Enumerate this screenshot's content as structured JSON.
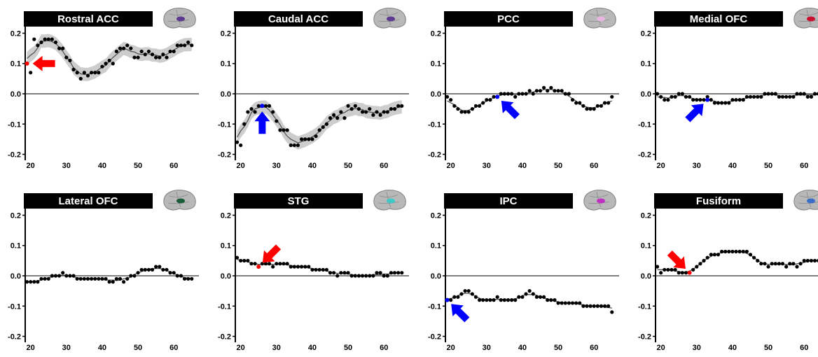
{
  "chart_data": [
    {
      "type": "scatter",
      "title": "Rostral ACC",
      "xticks": [
        20,
        30,
        40,
        50,
        60
      ],
      "yticks": [
        0.2,
        0.1,
        0.0,
        -0.1,
        -0.2
      ],
      "xlim": [
        18.5,
        67
      ],
      "ylim": [
        -0.215,
        0.215
      ],
      "brain_color": "#5b3a8f",
      "smooth_band": true,
      "highlight": {
        "x": 19,
        "y": 0.1,
        "color": "#ff0000"
      },
      "arrow": {
        "color": "#ff0000",
        "direction": "left"
      },
      "x": [
        19,
        20,
        21,
        22,
        23,
        24,
        25,
        26,
        27,
        28,
        29,
        30,
        31,
        32,
        33,
        34,
        35,
        36,
        37,
        38,
        39,
        40,
        41,
        42,
        43,
        44,
        45,
        46,
        47,
        48,
        49,
        50,
        51,
        52,
        53,
        54,
        55,
        56,
        57,
        58,
        59,
        60,
        61,
        62,
        63,
        64,
        65
      ],
      "y": [
        0.1,
        0.07,
        0.18,
        0.16,
        0.17,
        0.18,
        0.18,
        0.18,
        0.17,
        0.15,
        0.15,
        0.12,
        0.11,
        0.08,
        0.07,
        0.05,
        0.07,
        0.06,
        0.07,
        0.07,
        0.07,
        0.09,
        0.1,
        0.11,
        0.1,
        0.14,
        0.15,
        0.15,
        0.16,
        0.15,
        0.12,
        0.12,
        0.14,
        0.13,
        0.14,
        0.13,
        0.12,
        0.12,
        0.13,
        0.12,
        0.14,
        0.14,
        0.16,
        0.16,
        0.16,
        0.17,
        0.16
      ]
    },
    {
      "type": "scatter",
      "title": "Caudal ACC",
      "xticks": [
        20,
        30,
        40,
        50,
        60
      ],
      "yticks": [
        0.2,
        0.1,
        0.0,
        -0.1,
        -0.2
      ],
      "xlim": [
        18.5,
        67
      ],
      "ylim": [
        -0.215,
        0.215
      ],
      "brain_color": "#5b3a8f",
      "smooth_band": true,
      "highlight": {
        "x": 26,
        "y": -0.04,
        "color": "#0000ff"
      },
      "arrow": {
        "color": "#0000ff",
        "direction": "up"
      },
      "x": [
        19,
        20,
        21,
        22,
        23,
        24,
        25,
        26,
        27,
        28,
        29,
        30,
        31,
        32,
        33,
        34,
        35,
        36,
        37,
        38,
        39,
        40,
        41,
        42,
        43,
        44,
        45,
        46,
        47,
        48,
        49,
        50,
        51,
        52,
        53,
        54,
        55,
        56,
        57,
        58,
        59,
        60,
        61,
        62,
        63,
        64,
        65
      ],
      "y": [
        -0.16,
        -0.17,
        -0.1,
        -0.06,
        -0.05,
        -0.06,
        -0.04,
        -0.04,
        -0.04,
        -0.04,
        -0.06,
        -0.09,
        -0.12,
        -0.12,
        -0.12,
        -0.17,
        -0.17,
        -0.17,
        -0.15,
        -0.15,
        -0.15,
        -0.15,
        -0.14,
        -0.12,
        -0.11,
        -0.1,
        -0.08,
        -0.07,
        -0.08,
        -0.06,
        -0.08,
        -0.04,
        -0.05,
        -0.04,
        -0.05,
        -0.06,
        -0.06,
        -0.05,
        -0.07,
        -0.06,
        -0.07,
        -0.06,
        -0.06,
        -0.05,
        -0.05,
        -0.04,
        -0.04
      ]
    },
    {
      "type": "scatter",
      "title": "PCC",
      "xticks": [
        20,
        30,
        40,
        50,
        60
      ],
      "yticks": [
        0.2,
        0.1,
        0.0,
        -0.1,
        -0.2
      ],
      "xlim": [
        18.5,
        67
      ],
      "ylim": [
        -0.215,
        0.215
      ],
      "brain_color": "#e8b6e0",
      "smooth_band": false,
      "highlight": {
        "x": 33,
        "y": -0.01,
        "color": "#0000ff"
      },
      "arrow": {
        "color": "#0000ff",
        "direction": "upleft"
      },
      "x": [
        19,
        20,
        21,
        22,
        23,
        24,
        25,
        26,
        27,
        28,
        29,
        30,
        31,
        32,
        33,
        34,
        35,
        36,
        37,
        38,
        39,
        40,
        41,
        42,
        43,
        44,
        45,
        46,
        47,
        48,
        49,
        50,
        51,
        52,
        53,
        54,
        55,
        56,
        57,
        58,
        59,
        60,
        61,
        62,
        63,
        64,
        65
      ],
      "y": [
        -0.01,
        -0.02,
        -0.04,
        -0.05,
        -0.06,
        -0.06,
        -0.06,
        -0.05,
        -0.04,
        -0.04,
        -0.03,
        -0.02,
        -0.02,
        -0.01,
        -0.01,
        0.0,
        0.0,
        0.0,
        0.0,
        -0.01,
        0.0,
        0.0,
        0.0,
        0.01,
        0.0,
        0.01,
        0.01,
        0.02,
        0.01,
        0.02,
        0.01,
        0.01,
        0.01,
        0.0,
        0.0,
        -0.02,
        -0.03,
        -0.03,
        -0.04,
        -0.05,
        -0.05,
        -0.05,
        -0.04,
        -0.04,
        -0.03,
        -0.03,
        -0.01
      ]
    },
    {
      "type": "scatter",
      "title": "Medial OFC",
      "xticks": [
        20,
        30,
        40,
        50,
        60
      ],
      "yticks": [
        0.2,
        0.1,
        0.0,
        -0.1,
        -0.2
      ],
      "xlim": [
        18.5,
        67
      ],
      "ylim": [
        -0.215,
        0.215
      ],
      "brain_color": "#c8102e",
      "smooth_band": false,
      "highlight": {
        "x": 33,
        "y": -0.02,
        "color": "#0000ff"
      },
      "arrow": {
        "color": "#0000ff",
        "direction": "upright"
      },
      "x": [
        19,
        20,
        21,
        22,
        23,
        24,
        25,
        26,
        27,
        28,
        29,
        30,
        31,
        32,
        33,
        34,
        35,
        36,
        37,
        38,
        39,
        40,
        41,
        42,
        43,
        44,
        45,
        46,
        47,
        48,
        49,
        50,
        51,
        52,
        53,
        54,
        55,
        56,
        57,
        58,
        59,
        60,
        61,
        62,
        63,
        64,
        65
      ],
      "y": [
        0.0,
        -0.01,
        -0.02,
        -0.02,
        -0.01,
        -0.01,
        0.0,
        0.0,
        -0.01,
        -0.01,
        -0.02,
        -0.02,
        -0.02,
        -0.02,
        -0.01,
        -0.02,
        -0.03,
        -0.03,
        -0.03,
        -0.03,
        -0.03,
        -0.02,
        -0.02,
        -0.02,
        -0.02,
        -0.01,
        -0.01,
        -0.01,
        -0.01,
        -0.01,
        0.0,
        0.0,
        0.0,
        0.0,
        -0.01,
        -0.01,
        -0.01,
        -0.01,
        -0.01,
        0.0,
        0.0,
        0.0,
        -0.01,
        -0.01,
        0.0,
        0.0,
        0.0
      ]
    },
    {
      "type": "scatter",
      "title": "Lateral OFC",
      "xticks": [
        20,
        30,
        40,
        50,
        60
      ],
      "yticks": [
        0.2,
        0.1,
        0.0,
        -0.1,
        -0.2
      ],
      "xlim": [
        18.5,
        67
      ],
      "ylim": [
        -0.215,
        0.215
      ],
      "brain_color": "#1a5c3a",
      "smooth_band": false,
      "x": [
        19,
        20,
        21,
        22,
        23,
        24,
        25,
        26,
        27,
        28,
        29,
        30,
        31,
        32,
        33,
        34,
        35,
        36,
        37,
        38,
        39,
        40,
        41,
        42,
        43,
        44,
        45,
        46,
        47,
        48,
        49,
        50,
        51,
        52,
        53,
        54,
        55,
        56,
        57,
        58,
        59,
        60,
        61,
        62,
        63,
        64,
        65
      ],
      "y": [
        -0.02,
        -0.02,
        -0.02,
        -0.02,
        -0.01,
        -0.01,
        -0.01,
        0.0,
        0.0,
        0.0,
        0.01,
        0.0,
        0.0,
        0.0,
        -0.01,
        -0.01,
        -0.01,
        -0.01,
        -0.01,
        -0.01,
        -0.01,
        -0.01,
        -0.01,
        -0.02,
        -0.02,
        -0.01,
        -0.01,
        -0.02,
        -0.01,
        0.0,
        0.0,
        0.01,
        0.02,
        0.02,
        0.02,
        0.02,
        0.03,
        0.03,
        0.02,
        0.02,
        0.01,
        0.01,
        0.0,
        0.0,
        -0.01,
        -0.01,
        -0.01
      ]
    },
    {
      "type": "scatter",
      "title": "STG",
      "xticks": [
        20,
        30,
        40,
        50,
        60
      ],
      "yticks": [
        0.2,
        0.1,
        0.0,
        -0.1,
        -0.2
      ],
      "xlim": [
        18.5,
        67
      ],
      "ylim": [
        -0.215,
        0.215
      ],
      "brain_color": "#40c8c8",
      "smooth_band": false,
      "highlight": {
        "x": 25,
        "y": 0.03,
        "color": "#ff0000"
      },
      "arrow": {
        "color": "#ff0000",
        "direction": "downleft"
      },
      "x": [
        19,
        20,
        21,
        22,
        23,
        24,
        25,
        26,
        27,
        28,
        29,
        30,
        31,
        32,
        33,
        34,
        35,
        36,
        37,
        38,
        39,
        40,
        41,
        42,
        43,
        44,
        45,
        46,
        47,
        48,
        49,
        50,
        51,
        52,
        53,
        54,
        55,
        56,
        57,
        58,
        59,
        60,
        61,
        62,
        63,
        64,
        65
      ],
      "y": [
        0.06,
        0.05,
        0.05,
        0.05,
        0.04,
        0.04,
        0.03,
        0.04,
        0.04,
        0.04,
        0.03,
        0.04,
        0.04,
        0.04,
        0.04,
        0.03,
        0.03,
        0.03,
        0.03,
        0.03,
        0.03,
        0.02,
        0.02,
        0.02,
        0.02,
        0.02,
        0.01,
        0.01,
        0.0,
        0.01,
        0.01,
        0.01,
        0.0,
        0.0,
        0.0,
        0.0,
        0.0,
        0.0,
        0.0,
        0.01,
        0.01,
        0.0,
        0.0,
        0.01,
        0.01,
        0.01,
        0.01
      ]
    },
    {
      "type": "scatter",
      "title": "IPC",
      "xticks": [
        20,
        30,
        40,
        50,
        60
      ],
      "yticks": [
        0.2,
        0.1,
        0.0,
        -0.1,
        -0.2
      ],
      "xlim": [
        18.5,
        67
      ],
      "ylim": [
        -0.215,
        0.215
      ],
      "brain_color": "#c030c0",
      "smooth_band": false,
      "highlight": {
        "x": 19,
        "y": -0.08,
        "color": "#0000ff"
      },
      "arrow": {
        "color": "#0000ff",
        "direction": "upleft"
      },
      "x": [
        19,
        20,
        21,
        22,
        23,
        24,
        25,
        26,
        27,
        28,
        29,
        30,
        31,
        32,
        33,
        34,
        35,
        36,
        37,
        38,
        39,
        40,
        41,
        42,
        43,
        44,
        45,
        46,
        47,
        48,
        49,
        50,
        51,
        52,
        53,
        54,
        55,
        56,
        57,
        58,
        59,
        60,
        61,
        62,
        63,
        64,
        65
      ],
      "y": [
        -0.08,
        -0.08,
        -0.07,
        -0.07,
        -0.06,
        -0.05,
        -0.05,
        -0.06,
        -0.07,
        -0.08,
        -0.08,
        -0.08,
        -0.08,
        -0.08,
        -0.07,
        -0.08,
        -0.08,
        -0.08,
        -0.08,
        -0.08,
        -0.07,
        -0.07,
        -0.06,
        -0.05,
        -0.06,
        -0.07,
        -0.07,
        -0.07,
        -0.08,
        -0.08,
        -0.08,
        -0.09,
        -0.09,
        -0.09,
        -0.09,
        -0.09,
        -0.09,
        -0.09,
        -0.1,
        -0.1,
        -0.1,
        -0.1,
        -0.1,
        -0.1,
        -0.1,
        -0.1,
        -0.12
      ]
    },
    {
      "type": "scatter",
      "title": "Fusiform",
      "xticks": [
        20,
        30,
        40,
        50,
        60
      ],
      "yticks": [
        0.2,
        0.1,
        0.0,
        -0.1,
        -0.2
      ],
      "xlim": [
        18.5,
        67
      ],
      "ylim": [
        -0.215,
        0.215
      ],
      "brain_color": "#3a6ec8",
      "smooth_band": false,
      "highlight": {
        "x": 28,
        "y": 0.01,
        "color": "#ff0000"
      },
      "arrow": {
        "color": "#ff0000",
        "direction": "downright"
      },
      "x": [
        19,
        20,
        21,
        22,
        23,
        24,
        25,
        26,
        27,
        28,
        29,
        30,
        31,
        32,
        33,
        34,
        35,
        36,
        37,
        38,
        39,
        40,
        41,
        42,
        43,
        44,
        45,
        46,
        47,
        48,
        49,
        50,
        51,
        52,
        53,
        54,
        55,
        56,
        57,
        58,
        59,
        60,
        61,
        62,
        63,
        64,
        65
      ],
      "y": [
        0.03,
        0.01,
        0.02,
        0.02,
        0.02,
        0.02,
        0.01,
        0.01,
        0.01,
        0.01,
        0.02,
        0.03,
        0.04,
        0.05,
        0.06,
        0.07,
        0.07,
        0.07,
        0.08,
        0.08,
        0.08,
        0.08,
        0.08,
        0.08,
        0.08,
        0.08,
        0.07,
        0.06,
        0.05,
        0.04,
        0.04,
        0.03,
        0.04,
        0.04,
        0.04,
        0.04,
        0.03,
        0.04,
        0.04,
        0.03,
        0.04,
        0.05,
        0.05,
        0.05,
        0.05,
        0.05,
        0.05
      ]
    }
  ]
}
